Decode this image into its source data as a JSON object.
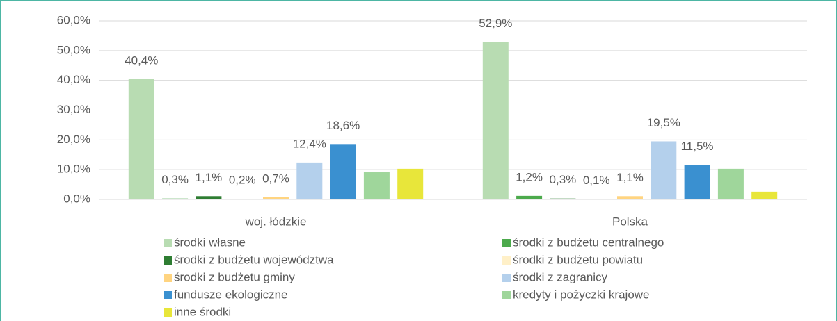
{
  "chart_data": {
    "type": "bar",
    "categories": [
      "woj. łódzkie",
      "Polska"
    ],
    "ylim": [
      0,
      60
    ],
    "yticks": [
      {
        "value": 0,
        "label": "0,0%"
      },
      {
        "value": 10,
        "label": "10,0%"
      },
      {
        "value": 20,
        "label": "20,0%"
      },
      {
        "value": 30,
        "label": "30,0%"
      },
      {
        "value": 40,
        "label": "40,0%"
      },
      {
        "value": 50,
        "label": "50,0%"
      },
      {
        "value": 60,
        "label": "60,0%"
      }
    ],
    "grid": true,
    "legend": "bottom",
    "series": [
      {
        "name": "środki własne",
        "color": "#b8dcb2",
        "values": [
          40.4,
          52.9
        ],
        "value_labels": [
          "40,4%",
          "52,9%"
        ]
      },
      {
        "name": "środki z budżetu centralnego",
        "color": "#4caa4c",
        "values": [
          0.3,
          1.2
        ],
        "value_labels": [
          "0,3%",
          "1,2%"
        ]
      },
      {
        "name": "środki z budżetu województwa",
        "color": "#2e7d32",
        "values": [
          1.1,
          0.3
        ],
        "value_labels": [
          "1,1%",
          "0,3%"
        ]
      },
      {
        "name": "środki z budżetu powiatu",
        "color": "#fff0c8",
        "values": [
          0.2,
          0.1
        ],
        "value_labels": [
          "0,2%",
          "0,1%"
        ]
      },
      {
        "name": "środki z budżetu gminy",
        "color": "#ffd480",
        "values": [
          0.7,
          1.1
        ],
        "value_labels": [
          "0,7%",
          "1,1%"
        ]
      },
      {
        "name": "środki z zagranicy",
        "color": "#b4d0ec",
        "values": [
          12.4,
          19.5
        ],
        "value_labels": [
          "12,4%",
          "19,5%"
        ]
      },
      {
        "name": "fundusze ekologiczne",
        "color": "#3a90d0",
        "values": [
          18.6,
          11.5
        ],
        "value_labels": [
          "18,6%",
          "11,5%"
        ]
      },
      {
        "name": "kredyty i pożyczki krajowe",
        "color": "#9fd69b",
        "values": [
          9.1,
          10.3
        ]
      },
      {
        "name": "inne środki",
        "color": "#e8e63a",
        "values": [
          10.3,
          2.6
        ]
      }
    ]
  }
}
